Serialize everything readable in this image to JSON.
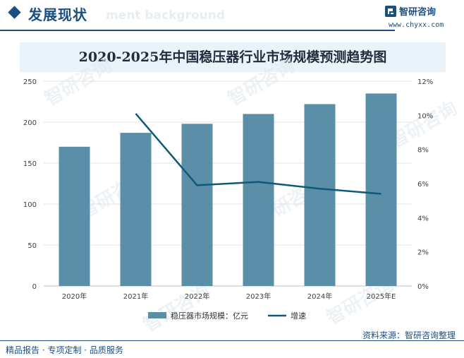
{
  "header": {
    "title": "发展现状",
    "ghost_text": "ment background"
  },
  "logo": {
    "name": "智研咨询",
    "url": "www.chyxx.com"
  },
  "colors": {
    "brand": "#1b4f82",
    "bar": "#5b8fa8",
    "line": "#0f5a78",
    "title_bg": "#eaf3fa"
  },
  "watermark_text": "智研咨询",
  "chart_data": {
    "type": "bar",
    "title": "2020-2025年中国稳压器行业市场规模预测趋势图",
    "categories": [
      "2020年",
      "2021年",
      "2022年",
      "2023年",
      "2024年",
      "2025年E"
    ],
    "series": [
      {
        "name": "稳压器市场规模：亿元",
        "type": "bar",
        "axis": "left",
        "values": [
          170,
          187,
          198,
          210,
          222,
          235
        ]
      },
      {
        "name": "增速",
        "type": "line",
        "axis": "right",
        "values": [
          null,
          10.1,
          5.9,
          6.1,
          5.7,
          5.4
        ]
      }
    ],
    "y_left": {
      "min": 0,
      "max": 250,
      "ticks": [
        "0",
        "50",
        "100",
        "150",
        "200",
        "250"
      ]
    },
    "y_right": {
      "min": 0,
      "max": 12,
      "ticks": [
        "0%",
        "2%",
        "4%",
        "6%",
        "8%",
        "10%",
        "12%"
      ]
    },
    "grid": true,
    "legend_position": "bottom"
  },
  "footer": {
    "left": "精品报告 · 专项定制 · 品质服务",
    "right": "资料来源：智研咨询整理"
  }
}
